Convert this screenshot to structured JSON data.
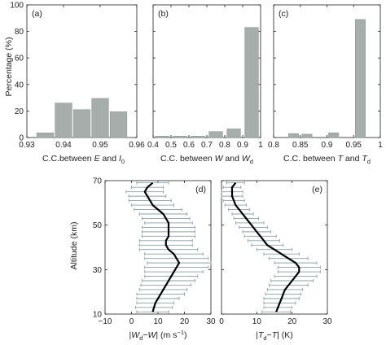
{
  "figure": {
    "y_axis_label_top": "Percentage (%)",
    "y_axis_label_bottom": "Altitude (km)"
  },
  "colors": {
    "bar": "#a6adab",
    "bar_edge": "#888f8d",
    "axis": "#222222",
    "errorbar": "#8ea0a2",
    "profile": "#000000"
  },
  "chart_data": [
    {
      "panel": "(a)",
      "type": "bar",
      "x": [
        0.935,
        0.94,
        0.945,
        0.95,
        0.955
      ],
      "values": [
        3.5,
        26,
        21,
        29.5,
        19.5
      ],
      "xlim": [
        0.93,
        0.96
      ],
      "ylim": [
        0,
        100
      ],
      "xticks": [
        "0.93",
        "0.94",
        "0.95",
        "0.96"
      ],
      "yticks": [
        "0",
        "20",
        "40",
        "60",
        "80",
        "100"
      ],
      "xlabel": {
        "pre": "C.C.between ",
        "v1": "E",
        "mid": " and ",
        "v2": "I",
        "sub": "0"
      }
    },
    {
      "panel": "(b)",
      "type": "bar",
      "x": [
        0.45,
        0.55,
        0.65,
        0.75,
        0.85,
        0.95
      ],
      "values": [
        1,
        1,
        1,
        4.5,
        6.5,
        83
      ],
      "xlim": [
        0.4,
        1.0
      ],
      "ylim": [
        0,
        100
      ],
      "xticks": [
        "0.4",
        "0.5",
        "0.6",
        "0.7",
        "0.8",
        "0.9",
        "1"
      ],
      "xlabel": {
        "pre": "C.C. between ",
        "v1": "W",
        "mid": " and ",
        "v2": "W",
        "sub": "d"
      }
    },
    {
      "panel": "(c)",
      "type": "bar",
      "x": [
        0.8125,
        0.8375,
        0.8625,
        0.8875,
        0.9125,
        0.9375,
        0.9625,
        0.9875
      ],
      "values": [
        0,
        3,
        2.5,
        0,
        3.5,
        0,
        89,
        0
      ],
      "xlim": [
        0.8,
        1.0
      ],
      "ylim": [
        0,
        100
      ],
      "xticks": [
        "0.8",
        "0.85",
        "0.9",
        "0.95",
        "1"
      ],
      "xlabel": {
        "pre": "C.C. between ",
        "v1": "T",
        "mid": " and ",
        "v2": "T",
        "sub": "d"
      }
    },
    {
      "panel": "(d)",
      "type": "line",
      "xlim": [
        -10,
        30
      ],
      "ylim": [
        10,
        70
      ],
      "xticks": [
        "−10",
        "0",
        "10",
        "20",
        "30"
      ],
      "yticks": [
        "10",
        "30",
        "50",
        "70"
      ],
      "xlabel": {
        "pre": "|",
        "v1": "W",
        "sub": "d",
        "mid": "−",
        "v2": "W",
        "post": "| (m s",
        "sup": "−1",
        "end": ")"
      },
      "altitude": [
        10,
        12,
        14,
        16,
        18,
        20,
        22,
        24,
        26,
        28,
        30,
        32,
        34,
        36,
        38,
        40,
        42,
        44,
        46,
        48,
        50,
        52,
        54,
        56,
        58,
        60,
        62,
        64,
        66,
        68
      ],
      "mean": [
        8,
        8.5,
        9,
        10,
        11,
        12,
        13,
        14,
        15,
        16,
        17,
        18,
        17,
        16,
        14,
        13,
        13,
        14,
        14,
        14,
        14,
        13,
        12,
        10,
        8,
        7,
        6,
        5,
        6,
        8
      ],
      "std": [
        6,
        7,
        7,
        8,
        9,
        9,
        9.5,
        10,
        10,
        11,
        12,
        12,
        12,
        11,
        11,
        10,
        10,
        10,
        10,
        10,
        9,
        9,
        9,
        9,
        8,
        8,
        7,
        7,
        6,
        6
      ]
    },
    {
      "panel": "(e)",
      "type": "line",
      "xlim": [
        0,
        30
      ],
      "ylim": [
        10,
        70
      ],
      "xticks": [
        "0",
        "10",
        "20",
        "30"
      ],
      "xlabel": {
        "pre": "|",
        "v1": "T",
        "sub": "d",
        "mid": "−",
        "v2": "T",
        "post": "| (K)"
      },
      "altitude": [
        10,
        12,
        14,
        16,
        18,
        20,
        22,
        24,
        26,
        28,
        30,
        32,
        34,
        36,
        38,
        40,
        42,
        44,
        46,
        48,
        50,
        52,
        54,
        56,
        58,
        60,
        62,
        64,
        66,
        68
      ],
      "mean": [
        15.5,
        16,
        16.5,
        17,
        17.5,
        18,
        19,
        20,
        21,
        22,
        22,
        21,
        19,
        17,
        15,
        13,
        12,
        11,
        10,
        9,
        8,
        7,
        6,
        5,
        4,
        3.5,
        3,
        3,
        3,
        4
      ],
      "std": [
        4,
        4,
        4.5,
        5,
        5,
        5,
        5.5,
        6,
        6,
        6,
        6,
        6,
        5.5,
        5,
        5,
        4.5,
        4.5,
        4.5,
        4,
        4,
        4,
        3.5,
        3,
        3,
        3,
        3,
        3,
        3,
        2.5,
        2.5
      ]
    }
  ]
}
